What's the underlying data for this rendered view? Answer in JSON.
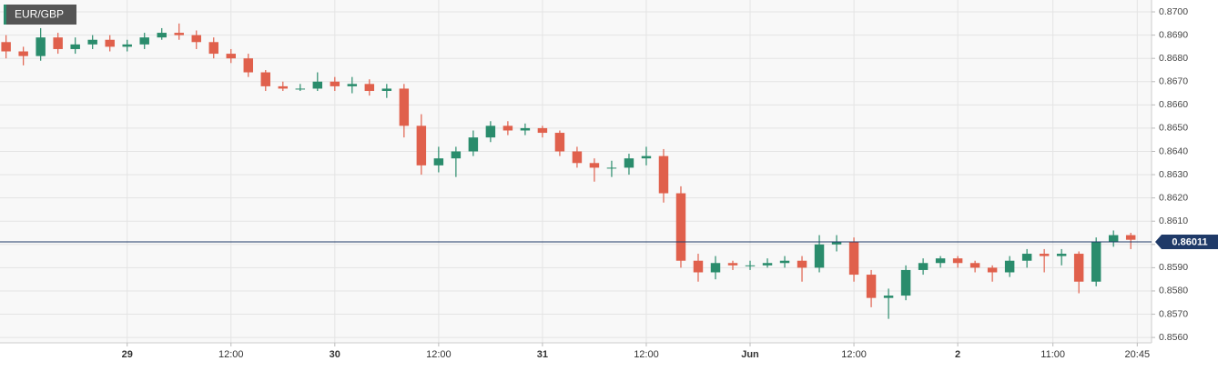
{
  "chart_data": {
    "type": "candlestick",
    "title": "EUR/GBP",
    "x": [
      -14,
      -12,
      -10,
      -8,
      -6,
      -4,
      -2,
      0,
      2,
      4,
      6,
      8,
      10,
      12,
      14,
      16,
      18,
      20,
      22,
      24,
      26,
      28,
      30,
      32,
      34,
      36,
      38,
      40,
      42,
      44,
      46,
      48,
      50,
      52,
      54,
      56,
      58,
      60,
      62,
      64,
      66,
      68,
      70,
      72,
      74,
      76,
      78,
      80,
      82,
      84,
      86,
      88,
      90,
      92,
      94,
      96,
      98,
      100,
      102,
      104,
      106,
      108,
      110,
      112,
      114,
      116
    ],
    "open": [
      0.8687,
      0.8683,
      0.8681,
      0.8689,
      0.8684,
      0.8686,
      0.8688,
      0.8685,
      0.8686,
      0.8689,
      0.8691,
      0.869,
      0.8687,
      0.8682,
      0.868,
      0.8674,
      0.8668,
      0.8667,
      0.8667,
      0.867,
      0.8668,
      0.8669,
      0.8666,
      0.8667,
      0.8651,
      0.8634,
      0.8637,
      0.864,
      0.8646,
      0.8651,
      0.8649,
      0.865,
      0.8648,
      0.864,
      0.8635,
      0.8633,
      0.8633,
      0.8637,
      0.8638,
      0.8622,
      0.8593,
      0.8588,
      0.8592,
      0.8591,
      0.8591,
      0.8592,
      0.8593,
      0.859,
      0.86,
      0.8601,
      0.8587,
      0.8577,
      0.8578,
      0.8589,
      0.8592,
      0.8594,
      0.8592,
      0.859,
      0.8588,
      0.8593,
      0.8596,
      0.8595,
      0.8596,
      0.8584,
      0.8601,
      0.8604
    ],
    "high": [
      0.869,
      0.8685,
      0.8693,
      0.8691,
      0.8689,
      0.869,
      0.869,
      0.8688,
      0.8691,
      0.8693,
      0.8695,
      0.8692,
      0.8689,
      0.8684,
      0.8682,
      0.8675,
      0.867,
      0.8669,
      0.8674,
      0.8672,
      0.8672,
      0.8671,
      0.8669,
      0.8669,
      0.8656,
      0.8642,
      0.8642,
      0.8649,
      0.8653,
      0.8653,
      0.8652,
      0.8651,
      0.8649,
      0.8642,
      0.8637,
      0.8636,
      0.8639,
      0.8642,
      0.8641,
      0.8625,
      0.8596,
      0.8595,
      0.8593,
      0.8593,
      0.8594,
      0.8595,
      0.8595,
      0.8604,
      0.8604,
      0.8603,
      0.8589,
      0.8581,
      0.8591,
      0.8594,
      0.8595,
      0.8595,
      0.8593,
      0.8591,
      0.8595,
      0.8598,
      0.8598,
      0.8598,
      0.8597,
      0.8603,
      0.8606,
      0.8605
    ],
    "low": [
      0.868,
      0.8677,
      0.8679,
      0.8682,
      0.8682,
      0.8684,
      0.8683,
      0.8683,
      0.8684,
      0.8688,
      0.8688,
      0.8684,
      0.868,
      0.8678,
      0.8672,
      0.8666,
      0.8666,
      0.8666,
      0.8666,
      0.8666,
      0.8665,
      0.8664,
      0.8663,
      0.8646,
      0.863,
      0.8631,
      0.8629,
      0.8638,
      0.8644,
      0.8647,
      0.8647,
      0.8646,
      0.8638,
      0.8633,
      0.8627,
      0.8629,
      0.863,
      0.8634,
      0.8618,
      0.859,
      0.8584,
      0.8585,
      0.8589,
      0.8589,
      0.859,
      0.859,
      0.8584,
      0.8588,
      0.8597,
      0.8584,
      0.8573,
      0.8568,
      0.8576,
      0.8587,
      0.859,
      0.859,
      0.8588,
      0.8584,
      0.8586,
      0.859,
      0.8588,
      0.8591,
      0.8579,
      0.8582,
      0.8599,
      0.8598
    ],
    "close": [
      0.8683,
      0.8681,
      0.8689,
      0.8684,
      0.8686,
      0.8688,
      0.8685,
      0.8686,
      0.8689,
      0.8691,
      0.869,
      0.8687,
      0.8682,
      0.868,
      0.8674,
      0.8668,
      0.8667,
      0.8667,
      0.867,
      0.8668,
      0.8669,
      0.8666,
      0.8667,
      0.8651,
      0.8634,
      0.8637,
      0.864,
      0.8646,
      0.8651,
      0.8649,
      0.865,
      0.8648,
      0.864,
      0.8635,
      0.8633,
      0.8633,
      0.8637,
      0.8638,
      0.8622,
      0.8593,
      0.8588,
      0.8592,
      0.8591,
      0.8591,
      0.8592,
      0.8593,
      0.859,
      0.86,
      0.8601,
      0.8587,
      0.8577,
      0.8578,
      0.8589,
      0.8592,
      0.8594,
      0.8592,
      0.859,
      0.8588,
      0.8593,
      0.8596,
      0.8595,
      0.8596,
      0.8584,
      0.8601,
      0.8604,
      0.8602
    ],
    "up_color": "#2a8c6c",
    "down_color": "#e0604c",
    "last_price": 0.86011,
    "last_price_color": "#1f3a68",
    "xlim": [
      -14.7,
      118.4
    ],
    "xticks": [
      {
        "value": 0,
        "label": "29"
      },
      {
        "value": 12,
        "label": "12:00"
      },
      {
        "value": 24,
        "label": "30"
      },
      {
        "value": 36,
        "label": "12:00"
      },
      {
        "value": 48,
        "label": "31"
      },
      {
        "value": 60,
        "label": "12:00"
      },
      {
        "value": 72,
        "label": "Jun"
      },
      {
        "value": 84,
        "label": "12:00"
      },
      {
        "value": 96,
        "label": "2"
      },
      {
        "value": 107,
        "label": "11:00"
      },
      {
        "value": 116.75,
        "label": "20:45"
      }
    ],
    "ylim": [
      0.85577,
      0.87051
    ],
    "yticks": [
      {
        "value": 0.856,
        "label": "0.8560"
      },
      {
        "value": 0.857,
        "label": "0.8570"
      },
      {
        "value": 0.858,
        "label": "0.8580"
      },
      {
        "value": 0.859,
        "label": "0.8590"
      },
      {
        "value": 0.86,
        "label": "0.8600"
      },
      {
        "value": 0.861,
        "label": "0.8610"
      },
      {
        "value": 0.862,
        "label": "0.8620"
      },
      {
        "value": 0.863,
        "label": "0.8630"
      },
      {
        "value": 0.864,
        "label": "0.8640"
      },
      {
        "value": 0.865,
        "label": "0.8650"
      },
      {
        "value": 0.866,
        "label": "0.8660"
      },
      {
        "value": 0.867,
        "label": "0.8670"
      },
      {
        "value": 0.868,
        "label": "0.8680"
      },
      {
        "value": 0.869,
        "label": "0.8690"
      },
      {
        "value": 0.87,
        "label": "0.8700"
      }
    ],
    "grid": true
  }
}
